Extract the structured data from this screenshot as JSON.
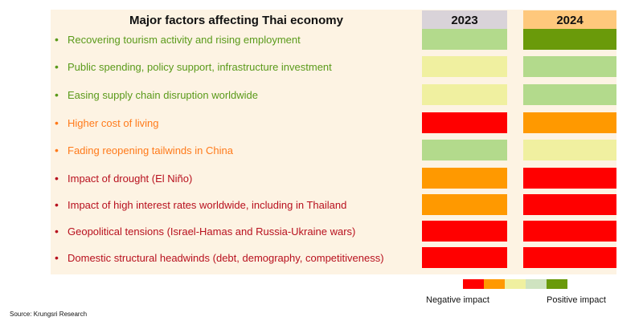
{
  "title": "Major factors affecting Thai economy",
  "columns": [
    "2023",
    "2024"
  ],
  "colors": {
    "strong_positive": "#6a9a0a",
    "positive": "#b3da8c",
    "neutral": "#f0f0a0",
    "mild_negative": "#ff9900",
    "negative": "#ff0000",
    "header_2023": "#d9d3d9",
    "header_2024": "#fec87c",
    "green_text": "#5a9a1a",
    "orange_text": "#ff7a1a",
    "red_text": "#b8101e"
  },
  "rows": [
    {
      "label": "Recovering tourism activity and rising employment",
      "color_key": "green_text",
      "y2023": "positive",
      "y2024": "strong_positive"
    },
    {
      "label": "Public spending, policy support, infrastructure investment",
      "color_key": "green_text",
      "y2023": "neutral",
      "y2024": "positive"
    },
    {
      "label": "Easing supply chain disruption worldwide",
      "color_key": "green_text",
      "y2023": "neutral",
      "y2024": "positive"
    },
    {
      "label": "Higher cost of living",
      "color_key": "orange_text",
      "y2023": "negative",
      "y2024": "mild_negative"
    },
    {
      "label": "Fading reopening tailwinds in China",
      "color_key": "orange_text",
      "y2023": "positive",
      "y2024": "neutral"
    },
    {
      "label": "Impact of drought (El Niño)",
      "color_key": "red_text",
      "y2023": "mild_negative",
      "y2024": "negative"
    },
    {
      "label": "Impact of high interest rates worldwide, including in Thailand",
      "color_key": "red_text",
      "y2023": "mild_negative",
      "y2024": "negative"
    },
    {
      "label": "Geopolitical tensions (Israel-Hamas and Russia-Ukraine wars)",
      "color_key": "red_text",
      "y2023": "negative",
      "y2024": "negative"
    },
    {
      "label": "Domestic structural headwinds (debt, demography, competitiveness)",
      "color_key": "red_text",
      "y2023": "negative",
      "y2024": "negative"
    }
  ],
  "legend": {
    "scale": [
      "negative",
      "mild_negative",
      "neutral",
      "light_positive",
      "strong_positive"
    ],
    "scale_colors": [
      "#ff0000",
      "#ff9900",
      "#f0f0a0",
      "#cfe3c0",
      "#6a9a0a"
    ],
    "negative_label": "Negative impact",
    "positive_label": "Positive impact"
  },
  "source": "Source: Krungsri Research"
}
